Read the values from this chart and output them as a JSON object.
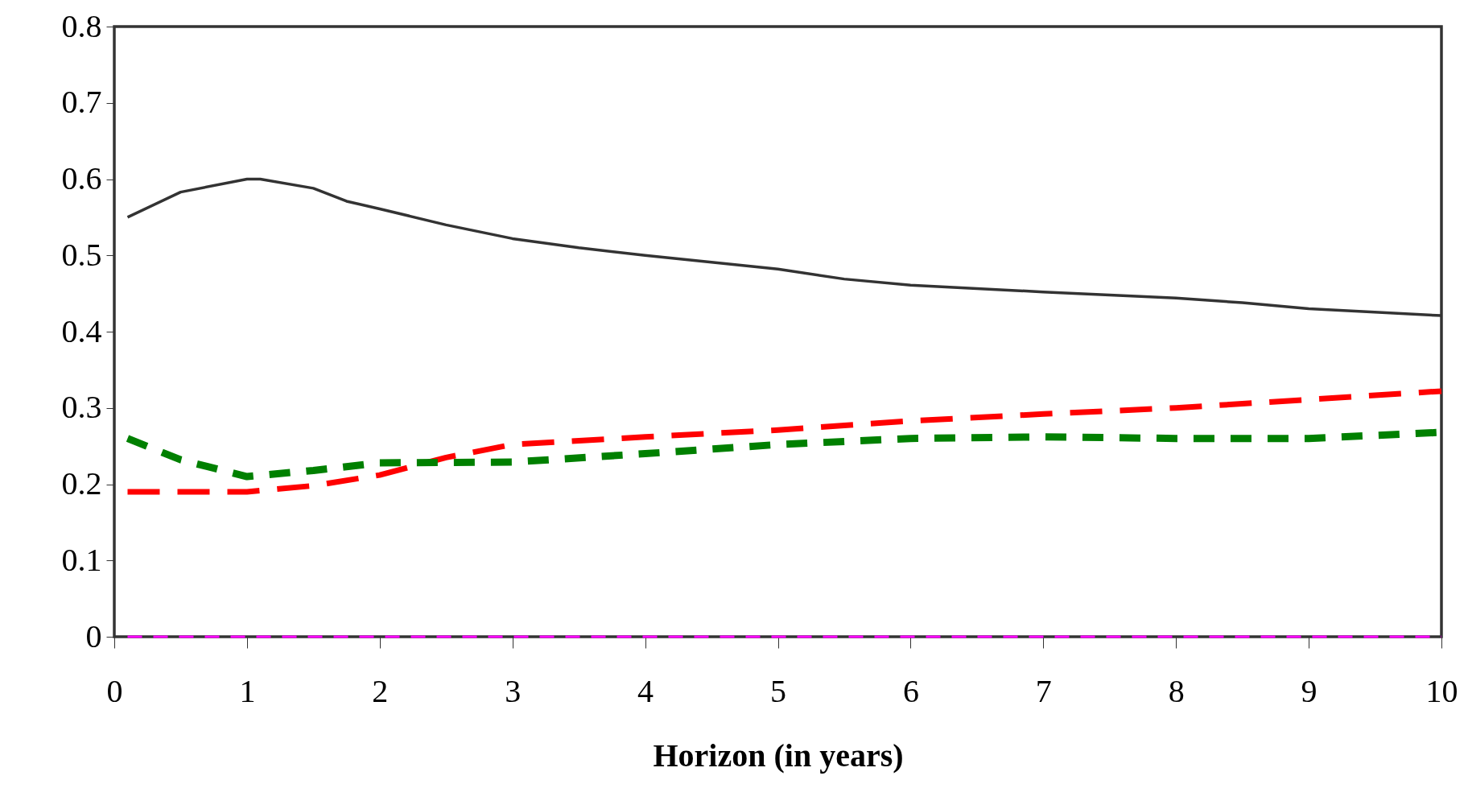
{
  "chart_data": {
    "type": "line",
    "xlabel": "Horizon (in years)",
    "xlim": [
      0,
      10
    ],
    "xticks": [
      0,
      1,
      2,
      3,
      4,
      5,
      6,
      7,
      8,
      9,
      10
    ],
    "ylim": [
      0,
      0.8
    ],
    "yticks": [
      0,
      0.1,
      0.2,
      0.3,
      0.4,
      0.5,
      0.6,
      0.7,
      0.8
    ],
    "grid": false,
    "marker": "none",
    "series": [
      {
        "color": "#333333",
        "line_style": "solid",
        "x": [
          0.1,
          0.5,
          1,
          1.1,
          1.5,
          1.75,
          2,
          2.5,
          3,
          3.5,
          4,
          4.5,
          5,
          5.5,
          6,
          7,
          8,
          8.5,
          9,
          10
        ],
        "values": [
          0.55,
          0.583,
          0.6,
          0.6,
          0.588,
          0.571,
          0.561,
          0.54,
          0.522,
          0.51,
          0.5,
          0.491,
          0.482,
          0.469,
          0.461,
          0.452,
          0.444,
          0.438,
          0.43,
          0.421
        ]
      },
      {
        "color": "#ff0000",
        "line_style": "dashed",
        "x": [
          0.1,
          1,
          1.5,
          2,
          2.5,
          3,
          4,
          5,
          6,
          7,
          8,
          9,
          10
        ],
        "values": [
          0.19,
          0.19,
          0.198,
          0.212,
          0.235,
          0.252,
          0.262,
          0.271,
          0.283,
          0.292,
          0.3,
          0.311,
          0.322
        ]
      },
      {
        "color": "#008000",
        "line_style": "dashed",
        "x": [
          0.1,
          0.5,
          1,
          1.5,
          2,
          3,
          4,
          5,
          6,
          7,
          8,
          9,
          10
        ],
        "values": [
          0.26,
          0.232,
          0.21,
          0.218,
          0.228,
          0.229,
          0.24,
          0.252,
          0.26,
          0.262,
          0.26,
          0.26,
          0.268
        ]
      },
      {
        "color": "#ff00ff",
        "line_style": "dashed",
        "x": [
          0.1,
          10
        ],
        "values": [
          0,
          0
        ]
      }
    ]
  }
}
